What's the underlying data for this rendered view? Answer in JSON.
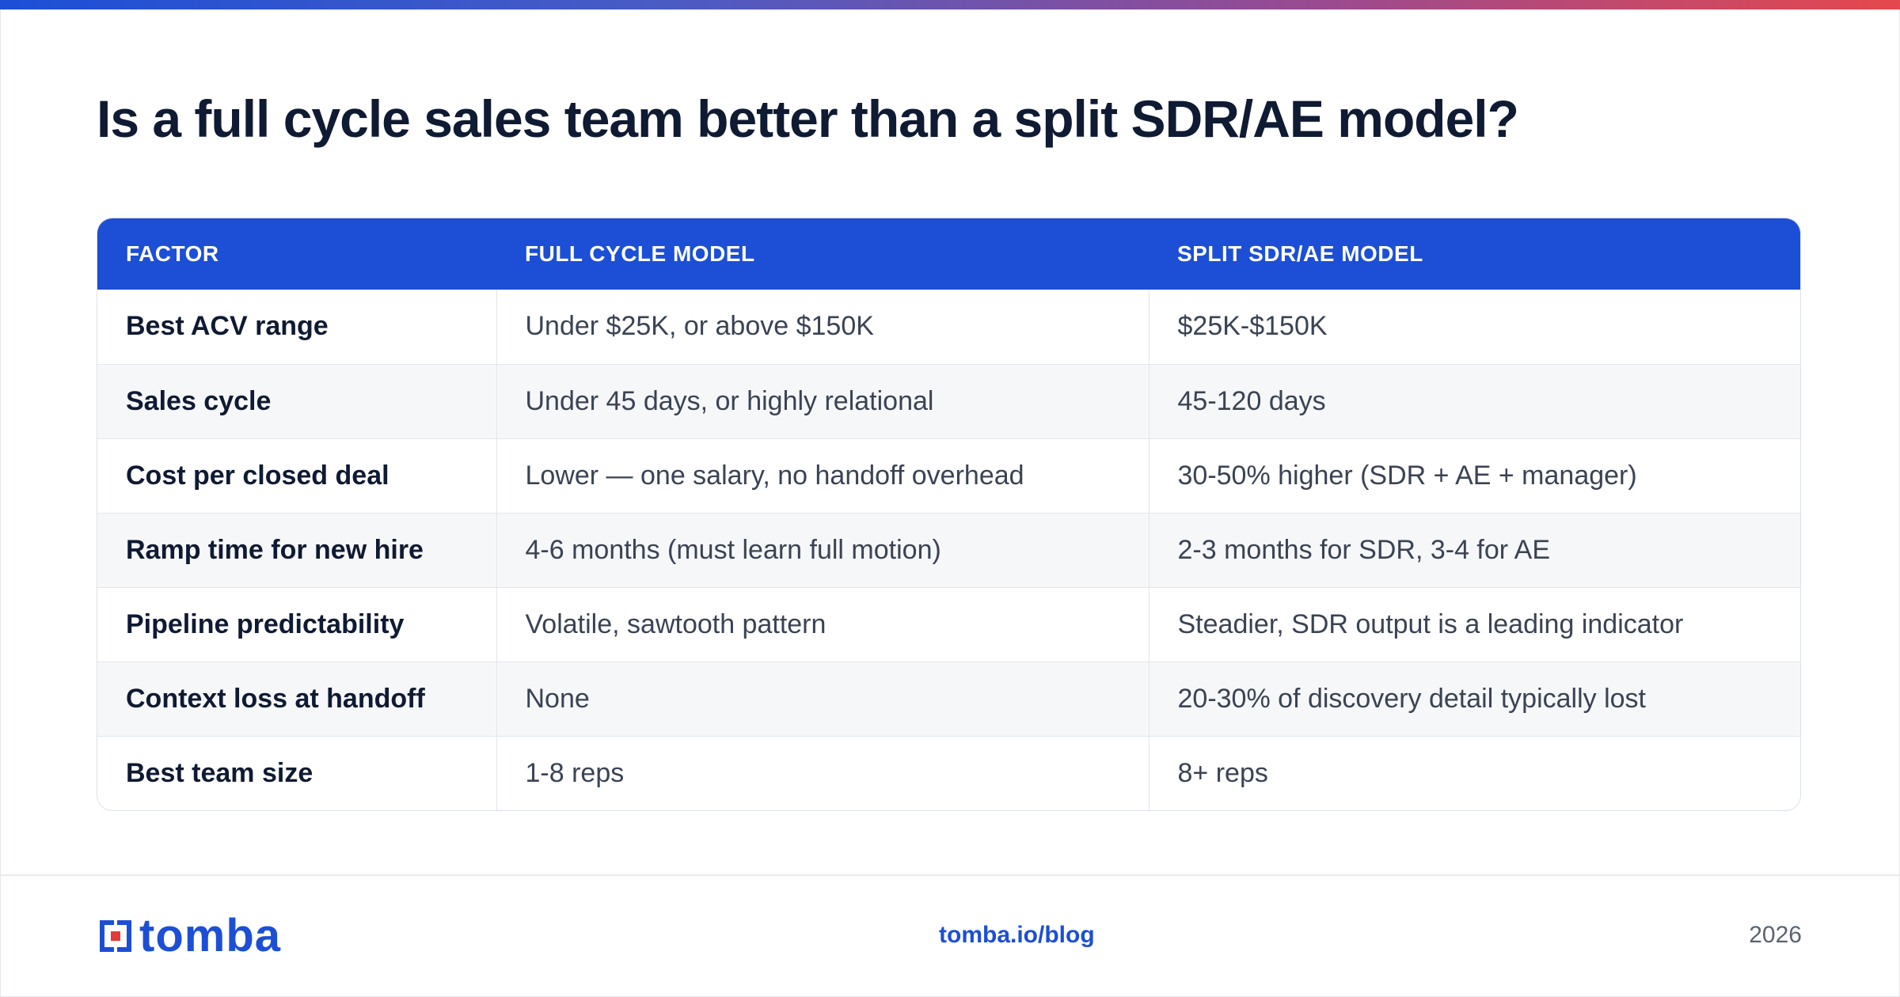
{
  "title": "Is a full cycle sales team better than a split SDR/AE model?",
  "table": {
    "headers": [
      "FACTOR",
      "FULL CYCLE MODEL",
      "SPLIT SDR/AE MODEL"
    ],
    "rows": [
      [
        "Best ACV range",
        "Under $25K, or above $150K",
        "$25K-$150K"
      ],
      [
        "Sales cycle",
        "Under 45 days, or highly relational",
        "45-120 days"
      ],
      [
        "Cost per closed deal",
        "Lower — one salary, no handoff overhead",
        "30-50% higher (SDR + AE + manager)"
      ],
      [
        "Ramp time for new hire",
        "4-6 months (must learn full motion)",
        "2-3 months for SDR, 3-4 for AE"
      ],
      [
        "Pipeline predictability",
        "Volatile, sawtooth pattern",
        "Steadier, SDR output is a leading indicator"
      ],
      [
        "Context loss at handoff",
        "None",
        "20-30% of discovery detail typically lost"
      ],
      [
        "Best team size",
        "1-8 reps",
        "8+ reps"
      ]
    ]
  },
  "footer": {
    "logo_text": "tomba",
    "link": "tomba.io/blog",
    "year": "2026"
  },
  "colors": {
    "accent": "#1c4fd6",
    "logo_red": "#e5383b",
    "title": "#0f1a33"
  },
  "icons": {
    "logo": "tomba-logo-mark"
  }
}
